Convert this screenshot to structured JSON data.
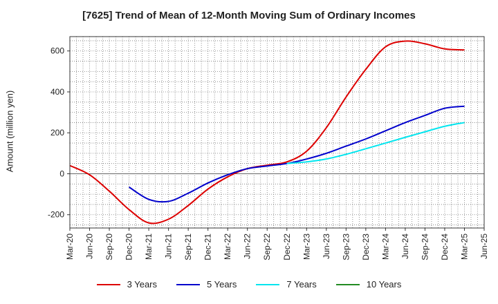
{
  "chart_data": {
    "type": "line",
    "title": "[7625]  Trend of Mean of 12-Month Moving Sum of Ordinary Incomes",
    "xlabel": "",
    "ylabel": "Amount (million yen)",
    "ylim": [
      -265,
      670
    ],
    "yticks": [
      -200,
      0,
      200,
      400,
      600
    ],
    "xticks": [
      "Mar-20",
      "Jun-20",
      "Sep-20",
      "Dec-20",
      "Mar-21",
      "Jun-21",
      "Sep-21",
      "Dec-21",
      "Mar-22",
      "Jun-22",
      "Sep-22",
      "Dec-22",
      "Mar-23",
      "Jun-23",
      "Sep-23",
      "Dec-23",
      "Mar-24",
      "Jun-24",
      "Sep-24",
      "Dec-24",
      "Mar-25",
      "Jun-25"
    ],
    "grid": true,
    "legend_position": "bottom",
    "series": [
      {
        "name": "3 Years",
        "color": "#dd0000",
        "x": [
          0,
          1,
          2,
          3,
          4,
          5,
          6,
          7,
          8,
          9,
          10,
          11,
          12,
          13,
          14,
          15,
          16,
          17,
          18,
          19,
          20
        ],
        "values": [
          40,
          -5,
          -85,
          -175,
          -240,
          -222,
          -155,
          -75,
          -15,
          25,
          42,
          58,
          110,
          225,
          375,
          510,
          620,
          648,
          635,
          610,
          605
        ]
      },
      {
        "name": "5 Years",
        "color": "#0000cc",
        "x": [
          3,
          4,
          5,
          6,
          7,
          8,
          9,
          10,
          11,
          12,
          13,
          14,
          15,
          16,
          17,
          18,
          19,
          20
        ],
        "values": [
          -65,
          -125,
          -135,
          -95,
          -45,
          -5,
          25,
          38,
          50,
          72,
          100,
          135,
          170,
          210,
          250,
          285,
          320,
          330
        ]
      },
      {
        "name": "7 Years",
        "color": "#00e5ee",
        "x": [
          11,
          12,
          13,
          14,
          15,
          16,
          17,
          18,
          19,
          20
        ],
        "values": [
          50,
          58,
          72,
          95,
          122,
          150,
          178,
          205,
          232,
          250
        ]
      },
      {
        "name": "10 Years",
        "color": "#228b22",
        "x": [],
        "values": []
      }
    ]
  }
}
